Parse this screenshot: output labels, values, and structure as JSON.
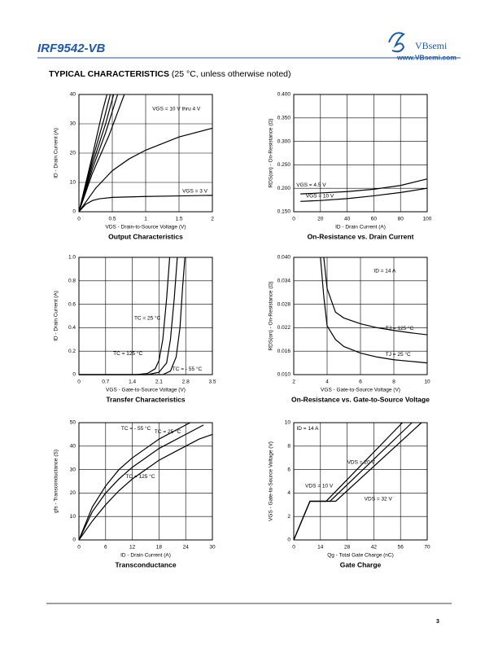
{
  "header": {
    "title": "IRF9542-VB",
    "logo": "VBsemi",
    "url": "www.VBsemi.com"
  },
  "section": {
    "title": "TYPICAL CHARACTERISTICS",
    "note": "(25 °C, unless otherwise noted)"
  },
  "page_number": "3",
  "chart_data": [
    {
      "type": "line",
      "title": "Output Characteristics",
      "xlabel": "VDS - Drain-to-Source Voltage (V)",
      "ylabel": "ID - Drain Current (A)",
      "xlim": [
        0,
        2
      ],
      "ylim": [
        0,
        40
      ],
      "xticks": [
        0,
        0.5,
        1,
        1.5,
        2
      ],
      "yticks": [
        0,
        10,
        20,
        30,
        40
      ],
      "grid": true,
      "series": [
        {
          "name": "VGS = 10 V thru 4 V",
          "color": "#000000",
          "x": [
            0,
            0.2,
            0.35,
            0.42
          ],
          "values": [
            0,
            19,
            34,
            40
          ]
        },
        {
          "color": "#000000",
          "x": [
            0,
            0.2,
            0.38,
            0.47
          ],
          "values": [
            0,
            17.5,
            32,
            40
          ]
        },
        {
          "color": "#000000",
          "x": [
            0,
            0.2,
            0.4,
            0.52
          ],
          "values": [
            0,
            16,
            30,
            40
          ]
        },
        {
          "color": "#000000",
          "x": [
            0,
            0.2,
            0.4,
            0.58
          ],
          "values": [
            0,
            14.5,
            27,
            40
          ]
        },
        {
          "color": "#000000",
          "x": [
            0,
            0.2,
            0.45,
            0.68
          ],
          "values": [
            0,
            13,
            26,
            40
          ]
        },
        {
          "color": "#000000",
          "x": [
            0,
            0.25,
            0.5,
            0.75,
            1,
            1.5,
            2
          ],
          "values": [
            0,
            8,
            14,
            18,
            21,
            25.5,
            28.5
          ]
        },
        {
          "name": "VGS = 3 V",
          "color": "#000000",
          "x": [
            0,
            0.1,
            0.2,
            0.3,
            0.5,
            1,
            1.5,
            2
          ],
          "values": [
            0,
            2.5,
            3.8,
            4.4,
            4.9,
            5.2,
            5.4,
            5.6
          ]
        }
      ]
    },
    {
      "type": "line",
      "title": "On-Resistance vs. Drain Current",
      "xlabel": "ID - Drain Current (A)",
      "ylabel": "RDS(on) - On-Resistance (Ω)",
      "xlim": [
        0,
        100
      ],
      "ylim": [
        0.15,
        0.4
      ],
      "xticks": [
        0,
        20,
        40,
        60,
        80,
        100
      ],
      "yticks": [
        {
          "value": 0.15,
          "label": "0.150"
        },
        {
          "value": 0.2,
          "label": "0.200"
        },
        {
          "value": 0.25,
          "label": "0.250"
        },
        {
          "value": 0.3,
          "label": "0.300"
        },
        {
          "value": 0.35,
          "label": "0.350"
        },
        {
          "value": 0.4,
          "label": "0.400"
        }
      ],
      "grid": true,
      "series": [
        {
          "name": "VGS = 4.5 V",
          "color": "#000000",
          "x": [
            5,
            20,
            40,
            60,
            80,
            100
          ],
          "values": [
            0.188,
            0.19,
            0.193,
            0.198,
            0.206,
            0.22
          ]
        },
        {
          "name": "VGS = 10 V",
          "color": "#000000",
          "x": [
            5,
            20,
            40,
            60,
            80,
            100
          ],
          "values": [
            0.172,
            0.174,
            0.178,
            0.184,
            0.191,
            0.2
          ]
        }
      ]
    },
    {
      "type": "line",
      "title": "Transfer Characteristics",
      "xlabel": "VGS - Gate-to-Source Voltage (V)",
      "ylabel": "ID - Drain Current (A)",
      "xlim": [
        0,
        3.5
      ],
      "ylim": [
        0,
        1
      ],
      "xticks": [
        0,
        0.7,
        1.4,
        2.1,
        2.8,
        3.5
      ],
      "yticks": [
        0,
        0.2,
        0.4,
        0.6,
        0.8,
        {
          "value": 1,
          "label": "1.0"
        }
      ],
      "grid": true,
      "series": [
        {
          "name": "TC = 25 °C",
          "color": "#000000",
          "x": [
            0,
            1.8,
            2.1,
            2.3,
            2.4,
            2.5,
            2.58
          ],
          "values": [
            0,
            0,
            0.02,
            0.1,
            0.3,
            0.65,
            1
          ]
        },
        {
          "name": "TC = 125 °C",
          "color": "#000000",
          "x": [
            0,
            1.5,
            1.8,
            2,
            2.1,
            2.2,
            2.3,
            2.38
          ],
          "values": [
            0,
            0,
            0.01,
            0.05,
            0.12,
            0.3,
            0.65,
            1
          ]
        },
        {
          "name": "TC = - 55 °C",
          "color": "#000000",
          "x": [
            0,
            2.2,
            2.4,
            2.55,
            2.65,
            2.72,
            2.78
          ],
          "values": [
            0,
            0,
            0.03,
            0.15,
            0.4,
            0.75,
            1
          ]
        }
      ]
    },
    {
      "type": "line",
      "title": "On-Resistance vs. Gate-to-Source Voltage",
      "xlabel": "VGS - Gate-to-Source Voltage (V)",
      "ylabel": "RDS(on) - On-Resistance (Ω)",
      "xlim": [
        2,
        10
      ],
      "ylim": [
        0.01,
        0.04
      ],
      "xticks": [
        2,
        4,
        6,
        8,
        10
      ],
      "yticks": [
        {
          "value": 0.01,
          "label": "0.010"
        },
        0.016,
        0.022,
        0.028,
        0.034,
        {
          "value": 0.04,
          "label": "0.040"
        }
      ],
      "grid": true,
      "annotation": "ID = 14 A",
      "series": [
        {
          "name": "TJ = 125 °C",
          "color": "#000000",
          "x": [
            3.8,
            4,
            4.5,
            5,
            6,
            7,
            8,
            9,
            10
          ],
          "values": [
            0.04,
            0.032,
            0.026,
            0.0245,
            0.023,
            0.022,
            0.0213,
            0.0207,
            0.0202
          ]
        },
        {
          "name": "TJ = 25 °C",
          "color": "#000000",
          "x": [
            3.6,
            3.8,
            4,
            4.5,
            5,
            6,
            7,
            8,
            9,
            10
          ],
          "values": [
            0.04,
            0.03,
            0.0225,
            0.019,
            0.0172,
            0.0155,
            0.0145,
            0.0138,
            0.0134,
            0.013
          ]
        }
      ]
    },
    {
      "type": "line",
      "title": "Transconductance",
      "xlabel": "ID - Drain Current (A)",
      "ylabel": "gfs - Transconductance (S)",
      "xlim": [
        0,
        30
      ],
      "ylim": [
        0,
        50
      ],
      "xticks": [
        0,
        6,
        12,
        18,
        24,
        30
      ],
      "yticks": [
        0,
        10,
        20,
        30,
        40,
        50
      ],
      "grid": true,
      "series": [
        {
          "name": "TC = - 55 °C",
          "color": "#000000",
          "x": [
            0,
            3,
            6,
            9,
            12,
            15,
            18,
            21,
            25
          ],
          "values": [
            0,
            14,
            23,
            30,
            35,
            39,
            43,
            46,
            50
          ]
        },
        {
          "name": "TC = 25 °C",
          "color": "#000000",
          "x": [
            0,
            3,
            6,
            9,
            12,
            15,
            18,
            21,
            24,
            28
          ],
          "values": [
            0,
            12,
            20,
            26,
            31,
            35,
            39,
            42,
            45,
            49
          ]
        },
        {
          "name": "TC = 125 °C",
          "color": "#000000",
          "x": [
            0,
            3,
            6,
            9,
            12,
            15,
            18,
            21,
            24,
            27,
            30
          ],
          "values": [
            0,
            8,
            15,
            21,
            26,
            30,
            34,
            37,
            40,
            43,
            45
          ]
        }
      ]
    },
    {
      "type": "line",
      "title": "Gate Charge",
      "xlabel": "Qg - Total Gate Charge (nC)",
      "ylabel": "VGS - Gate-to-Source Voltage (V)",
      "xlim": [
        0,
        70
      ],
      "ylim": [
        0,
        10
      ],
      "xticks": [
        0,
        14,
        28,
        42,
        56,
        70
      ],
      "yticks": [
        0,
        2,
        4,
        6,
        8,
        10
      ],
      "grid": true,
      "annotation": "ID = 14 A",
      "series": [
        {
          "name": "VDS = 10 V",
          "color": "#000000",
          "x": [
            0,
            8.5,
            17,
            57
          ],
          "values": [
            0,
            3.3,
            3.3,
            10
          ]
        },
        {
          "name": "VDS = 20 V",
          "color": "#000000",
          "x": [
            0,
            8.5,
            19,
            62
          ],
          "values": [
            0,
            3.3,
            3.3,
            10
          ]
        },
        {
          "name": "VDS = 32 V",
          "color": "#000000",
          "x": [
            0,
            8.5,
            22,
            67
          ],
          "values": [
            0,
            3.3,
            3.3,
            10
          ]
        }
      ]
    }
  ]
}
